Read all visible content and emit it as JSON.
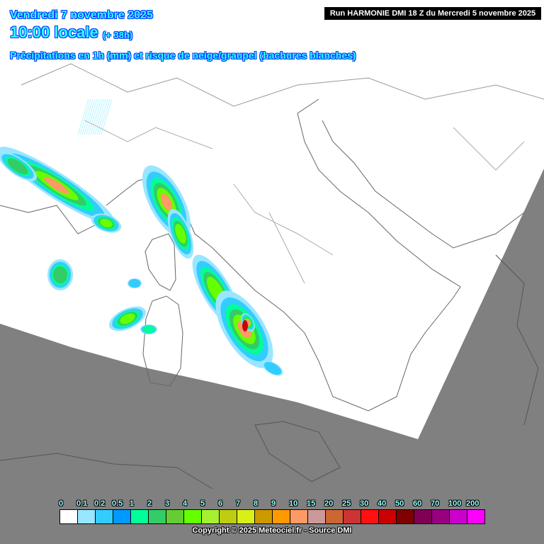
{
  "header": {
    "date": "Vendredi 7 novembre 2025",
    "time": "10:00 locale",
    "lead": "(+ 38h)",
    "parameter": "Précipitations en 1h (mm) et risque de neige/graupel (hachures blanches)",
    "run": "Run HARMONIE DMI 18 Z du Mercredi 5 novembre 2025"
  },
  "legend": {
    "labels": [
      "0",
      "0.1",
      "0.2",
      "0.5",
      "1",
      "2",
      "3",
      "4",
      "5",
      "6",
      "7",
      "8",
      "9",
      "10",
      "15",
      "20",
      "25",
      "30",
      "40",
      "50",
      "60",
      "70",
      "100",
      "200"
    ],
    "colors": [
      "#ffffff",
      "#99e6ff",
      "#33ccff",
      "#0099ff",
      "#00ff99",
      "#33cc66",
      "#66cc33",
      "#66ff00",
      "#a6f032",
      "#bfcc11",
      "#d9f017",
      "#cc9900",
      "#ff9900",
      "#ff9966",
      "#cc9999",
      "#cc6633",
      "#cc3333",
      "#ff1111",
      "#cc0000",
      "#800000",
      "#800055",
      "#990080",
      "#cc00cc",
      "#ff00ff"
    ]
  },
  "map": {
    "domain_color": "#ffffff",
    "outside_color": "#808080",
    "border_color": "#555555"
  },
  "copyright": "Copyright © 2025 Meteociel.fr - Source DMI"
}
